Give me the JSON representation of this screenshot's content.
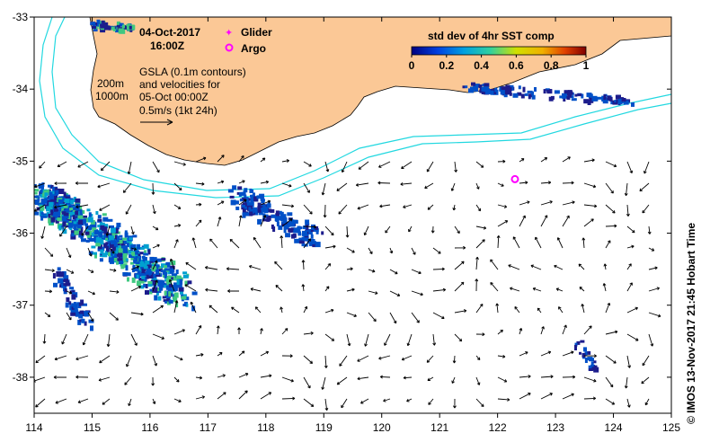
{
  "title": {
    "date": "04-Oct-2017",
    "time": "16:00Z"
  },
  "legend": {
    "glider_label": "Glider",
    "argo_label": "Argo",
    "glider_color": "#ff00ff",
    "argo_color": "#ff00ff"
  },
  "colorbar": {
    "title": "std dev of 4hr SST comp",
    "ticks": [
      "0",
      "0.2",
      "0.4",
      "0.6",
      "0.8",
      "1"
    ],
    "colors": [
      "#1c1c8c",
      "#0050c8",
      "#00a0d0",
      "#40c880",
      "#b0d020",
      "#f0c000",
      "#e06000",
      "#b00000"
    ]
  },
  "annotations": {
    "contour_200": "200m",
    "contour_1000": "1000m",
    "gsla_lines": [
      "GSLA (0.1m contours)",
      "and velocities for",
      "05-Oct 00:00Z"
    ],
    "scale_label": "0.5m/s (1kt 24h)"
  },
  "axes": {
    "x_ticks": [
      "114",
      "115",
      "116",
      "117",
      "118",
      "119",
      "120",
      "121",
      "122",
      "123",
      "124",
      "125"
    ],
    "y_ticks": [
      "-33",
      "-34",
      "-35",
      "-36",
      "-37",
      "-38"
    ],
    "lon_range": [
      114,
      125
    ],
    "lat_range": [
      -38.5,
      -33
    ]
  },
  "argo_float": {
    "lon": 122.3,
    "lat": -35.25
  },
  "credit": "© IMOS 13-Nov-2017 21:45 Hobart Time",
  "colors": {
    "land": "#fbc896",
    "bathy": "#22d8e0",
    "frame": "#000000"
  }
}
